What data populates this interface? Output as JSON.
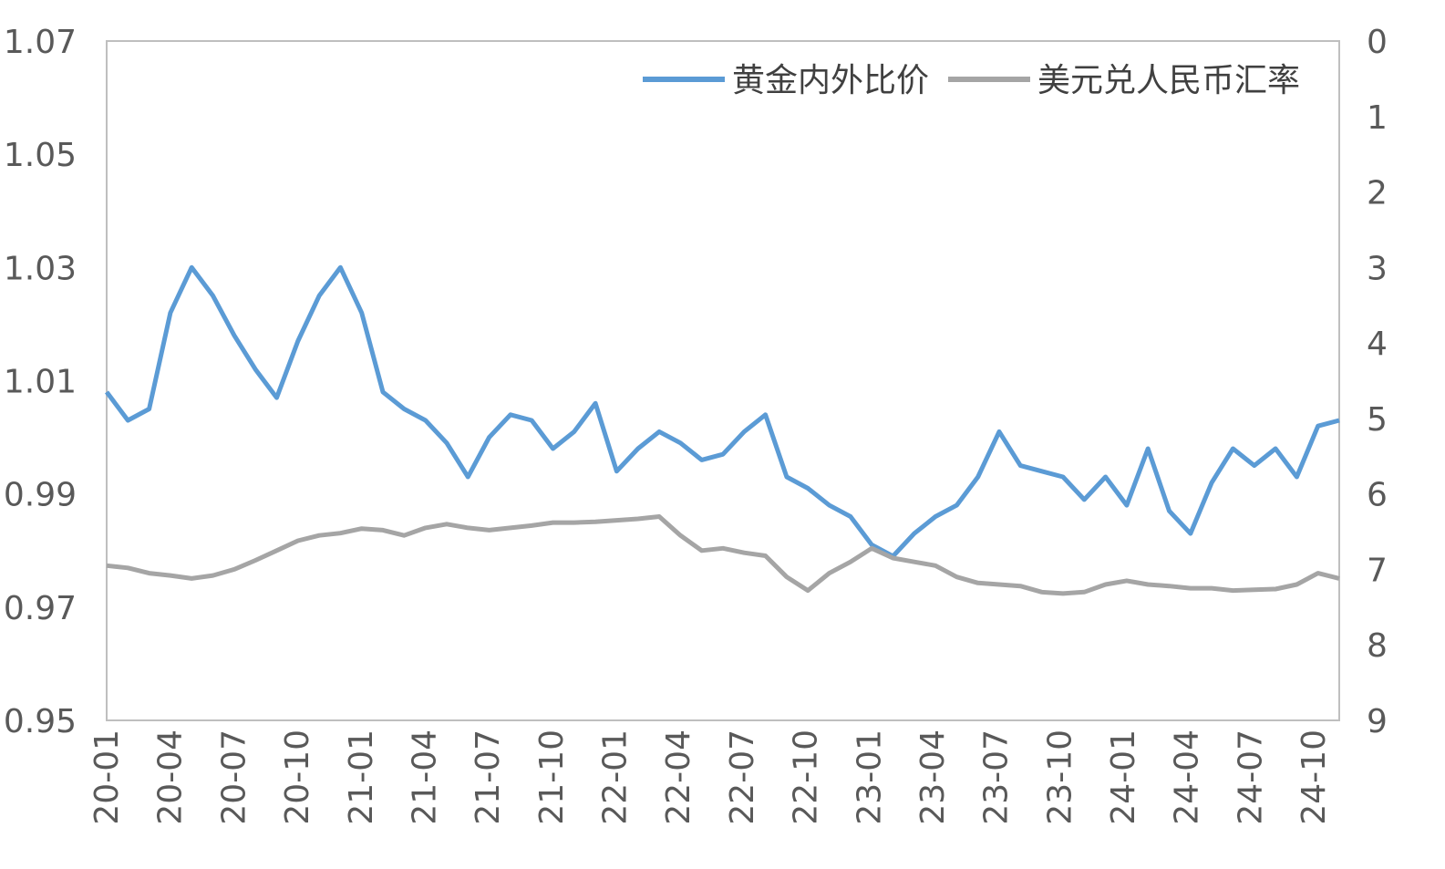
{
  "chart_data": {
    "type": "line",
    "title": "",
    "legend_position": "top-right",
    "grid": false,
    "x_tick_labels": [
      "20-01",
      "20-04",
      "20-07",
      "20-10",
      "21-01",
      "21-04",
      "21-07",
      "21-10",
      "22-01",
      "22-04",
      "22-07",
      "22-10",
      "23-01",
      "23-04",
      "23-07",
      "23-10",
      "24-01",
      "24-04",
      "24-07",
      "24-10"
    ],
    "x_range": [
      "2020-01",
      "2024-11"
    ],
    "y_left": {
      "ylim": [
        0.95,
        1.07
      ],
      "ticks": [
        "1.07",
        "1.05",
        "1.03",
        "1.01",
        "0.99",
        "0.97",
        "0.95"
      ]
    },
    "y_right": {
      "ylim": [
        0,
        9
      ],
      "inverted": true,
      "ticks": [
        "0",
        "1",
        "2",
        "3",
        "4",
        "5",
        "6",
        "7",
        "8",
        "9"
      ]
    },
    "series": [
      {
        "name": "黄金内外比价",
        "axis": "left",
        "color": "#5B9BD5",
        "x_step": "month",
        "x_start": "2020-01",
        "values": [
          1.008,
          1.003,
          1.005,
          1.022,
          1.03,
          1.025,
          1.018,
          1.012,
          1.007,
          1.017,
          1.025,
          1.03,
          1.022,
          1.008,
          1.005,
          1.003,
          0.999,
          0.993,
          1.0,
          1.004,
          1.003,
          0.998,
          1.001,
          1.006,
          0.994,
          0.998,
          1.001,
          0.999,
          0.996,
          0.997,
          1.001,
          1.004,
          0.993,
          0.991,
          0.988,
          0.986,
          0.981,
          0.979,
          0.983,
          0.986,
          0.988,
          0.993,
          1.001,
          0.995,
          0.994,
          0.993,
          0.989,
          0.993,
          0.988,
          0.998,
          0.987,
          0.983,
          0.992,
          0.998,
          0.995,
          0.998,
          0.993,
          1.002,
          1.003
        ]
      },
      {
        "name": "美元兑人民币汇率",
        "axis": "right",
        "color": "#A5A5A5",
        "x_step": "month",
        "x_start": "2020-01",
        "values": [
          6.95,
          6.98,
          7.05,
          7.08,
          7.12,
          7.08,
          7.0,
          6.88,
          6.75,
          6.62,
          6.55,
          6.52,
          6.46,
          6.48,
          6.55,
          6.45,
          6.4,
          6.45,
          6.48,
          6.45,
          6.42,
          6.38,
          6.38,
          6.37,
          6.35,
          6.33,
          6.3,
          6.55,
          6.75,
          6.72,
          6.78,
          6.82,
          7.1,
          7.28,
          7.05,
          6.9,
          6.72,
          6.85,
          6.9,
          6.95,
          7.1,
          7.18,
          7.2,
          7.22,
          7.3,
          7.32,
          7.3,
          7.2,
          7.15,
          7.2,
          7.22,
          7.25,
          7.25,
          7.28,
          7.27,
          7.26,
          7.2,
          7.05,
          7.12
        ]
      }
    ]
  }
}
